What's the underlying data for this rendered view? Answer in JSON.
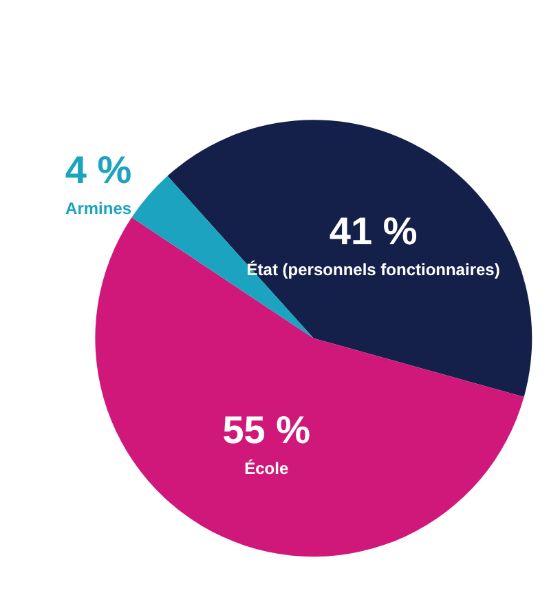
{
  "chart_data": {
    "type": "pie",
    "categories": [
      "État (personnels fonctionnaires)",
      "École",
      "Armines"
    ],
    "values": [
      41,
      55,
      4
    ],
    "colors": [
      "#14204a",
      "#d0187a",
      "#1ba3c0"
    ],
    "value_labels": [
      "41 %",
      "55 %",
      "4 %"
    ],
    "legend": false
  }
}
